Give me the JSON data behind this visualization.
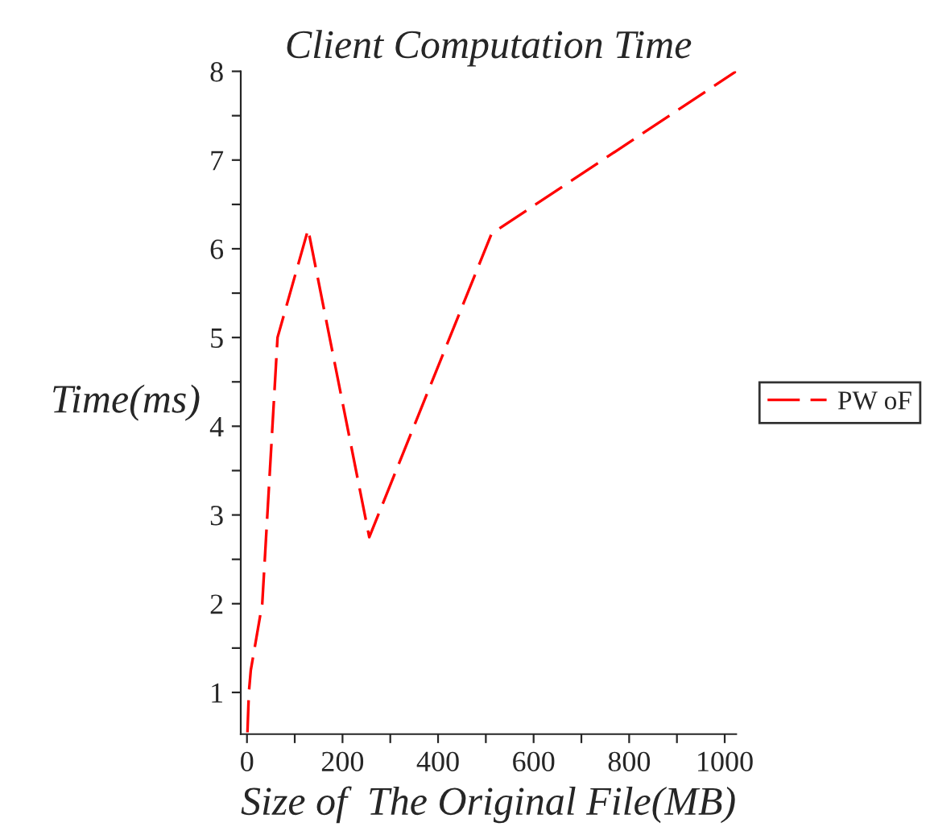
{
  "chart_data": {
    "type": "line",
    "title": "Client Computation Time",
    "xlabel": "Size of  The Original File(MB)",
    "ylabel": "Time(ms)",
    "x": [
      1,
      4,
      8,
      16,
      32,
      64,
      128,
      256,
      512,
      1024
    ],
    "series": [
      {
        "name": "PW oF",
        "color": "#ff0000",
        "values": [
          0.55,
          1.0,
          1.25,
          1.5,
          2.0,
          5.0,
          6.22,
          2.75,
          6.17,
          8.0
        ]
      }
    ],
    "xlim": [
      -13,
      1024
    ],
    "ylim": [
      0.53,
      8
    ],
    "xticks": [
      0,
      {
        "value": 100,
        "label": null
      },
      200,
      {
        "value": 300,
        "label": null
      },
      400,
      {
        "value": 500,
        "label": null
      },
      600,
      {
        "value": 700,
        "label": null
      },
      800,
      {
        "value": 900,
        "label": null
      },
      1000
    ],
    "yticks": [
      1,
      {
        "value": 1.5,
        "label": null
      },
      2,
      {
        "value": 2.5,
        "label": null
      },
      3,
      {
        "value": 3.5,
        "label": null
      },
      4,
      {
        "value": 4.5,
        "label": null
      },
      5,
      {
        "value": 5.5,
        "label": null
      },
      6,
      {
        "value": 6.5,
        "label": null
      },
      7,
      {
        "value": 7.5,
        "label": null
      },
      8
    ],
    "grid": false,
    "legend": "right",
    "line_style": "dashed",
    "marker": "none"
  }
}
